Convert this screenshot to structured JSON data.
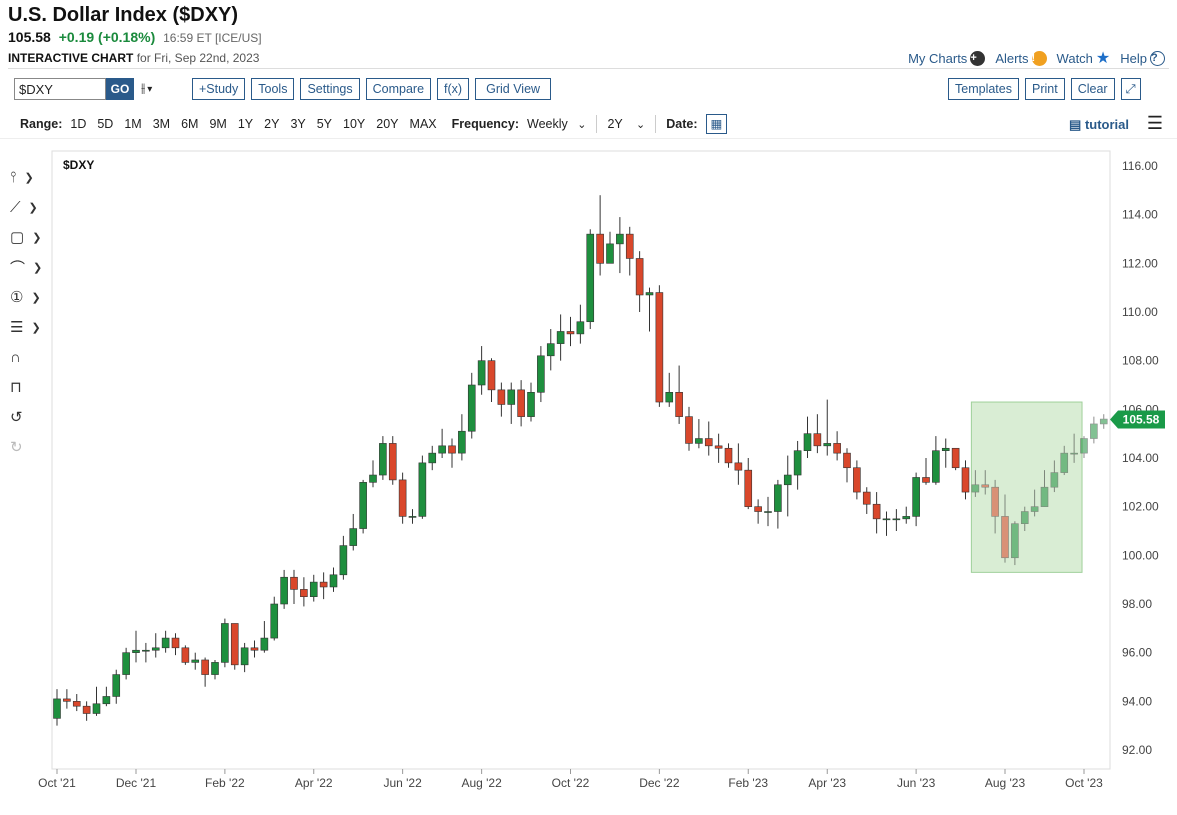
{
  "header": {
    "title": "U.S. Dollar Index ($DXY)",
    "price": "105.58",
    "change": "+0.19 (+0.18%)",
    "timestamp": "16:59 ET [ICE/US]",
    "subtitle_bold": "INTERACTIVE CHART",
    "subtitle_rest": "for Fri, Sep 22nd, 2023"
  },
  "top_links": {
    "my_charts": "My Charts",
    "alerts": "Alerts",
    "watch": "Watch",
    "help": "Help"
  },
  "toolbar": {
    "symbol": "$DXY",
    "go": "GO",
    "study": "+Study",
    "tools": "Tools",
    "settings": "Settings",
    "compare": "Compare",
    "fx": "f(x)",
    "grid_view": "Grid View",
    "templates": "Templates",
    "print": "Print",
    "clear": "Clear"
  },
  "range_bar": {
    "range_label": "Range:",
    "ranges": [
      "1D",
      "5D",
      "1M",
      "3M",
      "6M",
      "9M",
      "1Y",
      "2Y",
      "3Y",
      "5Y",
      "10Y",
      "20Y",
      "MAX"
    ],
    "frequency_label": "Frequency:",
    "frequency": "Weekly",
    "period": "2Y",
    "date_label": "Date:",
    "tutorial": "tutorial"
  },
  "colors": {
    "up": "#1e8f3e",
    "down": "#d9472b",
    "highlight": "#cfe8c9",
    "accent": "#2a5a8a",
    "last_price": "#1a9a48"
  },
  "chart_data": {
    "type": "candlestick",
    "symbol_label": "$DXY",
    "frequency": "weekly",
    "y_range": [
      91,
      116.5
    ],
    "y_ticks": [
      "92.00",
      "94.00",
      "96.00",
      "98.00",
      "100.00",
      "102.00",
      "104.00",
      "106.00",
      "108.00",
      "110.00",
      "112.00",
      "114.00",
      "116.00"
    ],
    "x_ticks": [
      {
        "label": "Oct '21",
        "week": 0
      },
      {
        "label": "Dec '21",
        "week": 8
      },
      {
        "label": "Feb '22",
        "week": 17
      },
      {
        "label": "Apr '22",
        "week": 26
      },
      {
        "label": "Jun '22",
        "week": 35
      },
      {
        "label": "Aug '22",
        "week": 43
      },
      {
        "label": "Oct '22",
        "week": 52
      },
      {
        "label": "Dec '22",
        "week": 61
      },
      {
        "label": "Feb '23",
        "week": 70
      },
      {
        "label": "Apr '23",
        "week": 78
      },
      {
        "label": "Jun '23",
        "week": 87
      },
      {
        "label": "Aug '23",
        "week": 96
      },
      {
        "label": "Oct '23",
        "week": 104
      }
    ],
    "last_price": "105.58",
    "highlight_box": {
      "week_start": 93,
      "week_end": 103.8,
      "low": 99.3,
      "high": 106.3
    },
    "candles": [
      [
        93.3,
        94.1,
        94.5,
        93.0
      ],
      [
        94.1,
        94.0,
        94.5,
        93.7
      ],
      [
        94.0,
        93.8,
        94.3,
        93.6
      ],
      [
        93.8,
        93.5,
        94.0,
        93.2
      ],
      [
        93.5,
        93.9,
        94.6,
        93.4
      ],
      [
        93.9,
        94.2,
        94.6,
        93.8
      ],
      [
        94.2,
        95.1,
        95.3,
        93.9
      ],
      [
        95.1,
        96.0,
        96.2,
        94.9
      ],
      [
        96.0,
        96.1,
        96.9,
        95.6
      ],
      [
        96.1,
        96.1,
        96.4,
        95.6
      ],
      [
        96.1,
        96.2,
        96.8,
        95.8
      ],
      [
        96.2,
        96.6,
        96.9,
        96.0
      ],
      [
        96.6,
        96.2,
        96.8,
        95.9
      ],
      [
        96.2,
        95.6,
        96.3,
        95.5
      ],
      [
        95.6,
        95.7,
        96.0,
        95.3
      ],
      [
        95.7,
        95.1,
        95.8,
        94.6
      ],
      [
        95.1,
        95.6,
        95.7,
        94.9
      ],
      [
        95.6,
        97.2,
        97.4,
        95.4
      ],
      [
        97.2,
        95.5,
        97.2,
        95.3
      ],
      [
        95.5,
        96.2,
        96.4,
        95.2
      ],
      [
        96.2,
        96.1,
        96.5,
        95.8
      ],
      [
        96.1,
        96.6,
        97.3,
        96.0
      ],
      [
        96.6,
        98.0,
        98.3,
        96.5
      ],
      [
        98.0,
        99.1,
        99.4,
        97.8
      ],
      [
        99.1,
        98.6,
        99.4,
        98.0
      ],
      [
        98.6,
        98.3,
        99.1,
        97.9
      ],
      [
        98.3,
        98.9,
        99.2,
        98.1
      ],
      [
        98.9,
        98.7,
        99.3,
        98.2
      ],
      [
        98.7,
        99.2,
        99.5,
        98.5
      ],
      [
        99.2,
        100.4,
        100.8,
        99.0
      ],
      [
        100.4,
        101.1,
        101.7,
        100.2
      ],
      [
        101.1,
        103.0,
        103.1,
        100.9
      ],
      [
        103.0,
        103.3,
        103.9,
        102.8
      ],
      [
        103.3,
        104.6,
        104.9,
        103.1
      ],
      [
        104.6,
        103.1,
        104.9,
        102.9
      ],
      [
        103.1,
        101.6,
        103.4,
        101.3
      ],
      [
        101.6,
        101.6,
        101.9,
        101.3
      ],
      [
        101.6,
        103.8,
        104.1,
        101.5
      ],
      [
        103.8,
        104.2,
        104.5,
        103.5
      ],
      [
        104.2,
        104.5,
        105.2,
        104.0
      ],
      [
        104.5,
        104.2,
        104.8,
        103.6
      ],
      [
        104.2,
        105.1,
        105.8,
        103.9
      ],
      [
        105.1,
        107.0,
        107.5,
        104.8
      ],
      [
        107.0,
        108.0,
        108.6,
        106.6
      ],
      [
        108.0,
        106.8,
        108.1,
        106.3
      ],
      [
        106.8,
        106.2,
        107.1,
        105.7
      ],
      [
        106.2,
        106.8,
        107.1,
        105.4
      ],
      [
        106.8,
        105.7,
        107.2,
        105.3
      ],
      [
        105.7,
        106.7,
        107.1,
        105.5
      ],
      [
        106.7,
        108.2,
        108.6,
        106.3
      ],
      [
        108.2,
        108.7,
        109.3,
        107.6
      ],
      [
        108.7,
        109.2,
        109.9,
        108.0
      ],
      [
        109.2,
        109.1,
        109.8,
        108.6
      ],
      [
        109.1,
        109.6,
        110.3,
        108.7
      ],
      [
        109.6,
        113.2,
        113.4,
        109.3
      ],
      [
        113.2,
        112.0,
        114.8,
        111.5
      ],
      [
        112.0,
        112.8,
        113.3,
        112.1
      ],
      [
        112.8,
        113.2,
        113.9,
        111.6
      ],
      [
        113.2,
        112.2,
        113.5,
        111.5
      ],
      [
        112.2,
        110.7,
        112.5,
        110.0
      ],
      [
        110.7,
        110.8,
        111.0,
        109.2
      ],
      [
        110.8,
        106.3,
        111.1,
        106.1
      ],
      [
        106.3,
        106.7,
        107.5,
        106.1
      ],
      [
        106.7,
        105.7,
        107.8,
        105.4
      ],
      [
        105.7,
        104.6,
        106.1,
        104.3
      ],
      [
        104.6,
        104.8,
        105.6,
        104.4
      ],
      [
        104.8,
        104.5,
        105.5,
        104.1
      ],
      [
        104.5,
        104.4,
        105.0,
        103.8
      ],
      [
        104.4,
        103.8,
        104.6,
        103.6
      ],
      [
        103.8,
        103.5,
        104.6,
        102.9
      ],
      [
        103.5,
        102.0,
        104.0,
        101.9
      ],
      [
        102.0,
        101.8,
        102.3,
        101.3
      ],
      [
        101.8,
        101.8,
        102.4,
        101.2
      ],
      [
        101.8,
        102.9,
        103.1,
        101.1
      ],
      [
        102.9,
        103.3,
        104.1,
        101.6
      ],
      [
        103.3,
        104.3,
        104.7,
        102.7
      ],
      [
        104.3,
        105.0,
        105.7,
        104.0
      ],
      [
        105.0,
        104.5,
        105.8,
        104.2
      ],
      [
        104.5,
        104.6,
        106.4,
        104.1
      ],
      [
        104.6,
        104.2,
        105.1,
        103.9
      ],
      [
        104.2,
        103.6,
        104.4,
        103.0
      ],
      [
        103.6,
        102.6,
        103.9,
        102.3
      ],
      [
        102.6,
        102.1,
        102.8,
        101.7
      ],
      [
        102.1,
        101.5,
        102.6,
        100.9
      ],
      [
        101.5,
        101.5,
        101.8,
        100.8
      ],
      [
        101.5,
        101.5,
        101.9,
        101.0
      ],
      [
        101.5,
        101.6,
        102.0,
        101.3
      ],
      [
        101.6,
        103.2,
        103.4,
        101.2
      ],
      [
        103.2,
        103.0,
        104.0,
        102.9
      ],
      [
        103.0,
        104.3,
        104.9,
        102.9
      ],
      [
        104.3,
        104.4,
        104.8,
        103.6
      ],
      [
        104.4,
        103.6,
        104.4,
        103.5
      ],
      [
        103.6,
        102.6,
        103.9,
        102.3
      ],
      [
        102.6,
        102.9,
        103.5,
        102.4
      ],
      [
        102.9,
        102.8,
        103.5,
        102.5
      ],
      [
        102.8,
        101.6,
        103.1,
        100.9
      ],
      [
        101.6,
        99.9,
        102.5,
        99.7
      ],
      [
        99.9,
        101.3,
        101.4,
        99.6
      ],
      [
        101.3,
        101.8,
        102.0,
        101.0
      ],
      [
        101.8,
        102.0,
        102.7,
        101.6
      ],
      [
        102.0,
        102.8,
        103.5,
        102.0
      ],
      [
        102.8,
        103.4,
        103.9,
        102.6
      ],
      [
        103.4,
        104.2,
        104.5,
        103.3
      ],
      [
        104.2,
        104.2,
        105.0,
        103.8
      ],
      [
        104.2,
        104.8,
        104.9,
        104.0
      ],
      [
        104.8,
        105.4,
        105.7,
        104.6
      ],
      [
        105.4,
        105.6,
        105.8,
        105.2
      ]
    ]
  },
  "left_tools": [
    "crosshair-tool",
    "line-tool",
    "shape-tool",
    "arc-tool",
    "annotation-tool",
    "fib-tool",
    "magnet-tool",
    "lock-tool",
    "undo-tool",
    "redo-tool"
  ]
}
